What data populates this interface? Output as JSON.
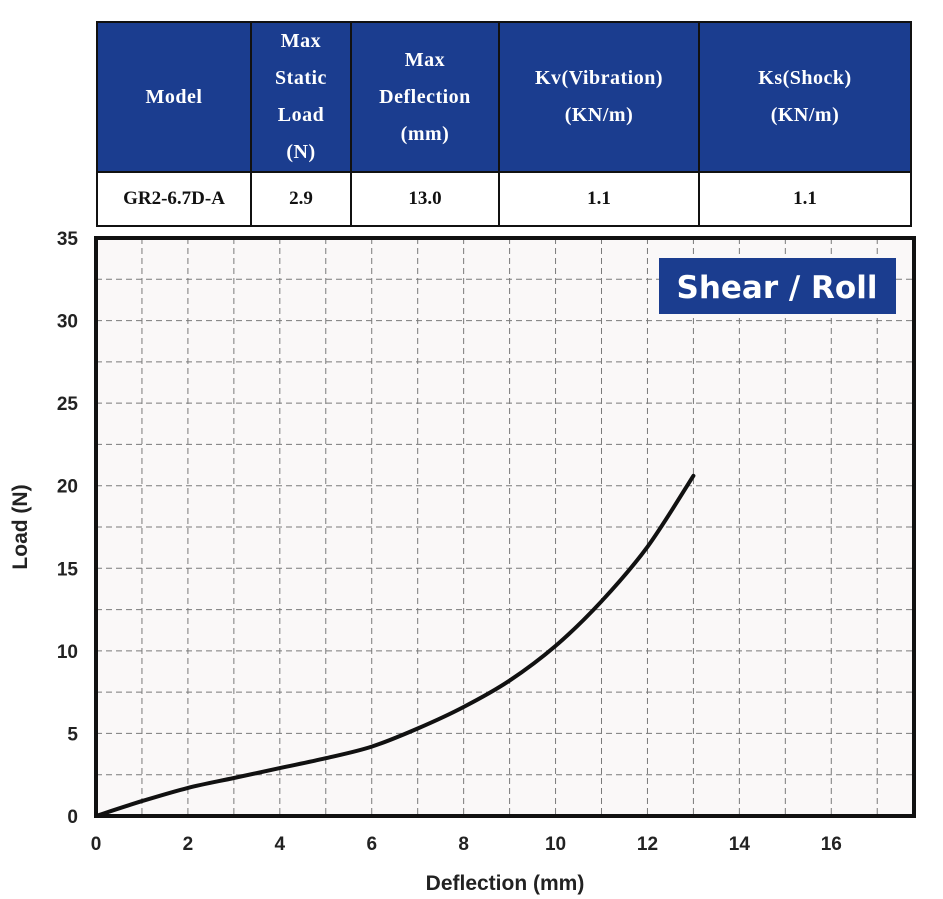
{
  "table": {
    "headers": [
      "Model",
      "Max Static Load (N)",
      "Max Deflection (mm)",
      "Kv(Vibration) (KN/m)",
      "Ks(Shock) (KN/m)"
    ],
    "header_lines": [
      [
        "Model"
      ],
      [
        "Max",
        "Static",
        "Load",
        "(N)"
      ],
      [
        "Max",
        "Deflection",
        "(mm)"
      ],
      [
        "Kv(Vibration)",
        "(KN/m)"
      ],
      [
        "Ks(Shock)",
        "(KN/m)"
      ]
    ],
    "rows": [
      [
        "GR2-6.7D-A",
        "2.9",
        "13.0",
        "1.1",
        "1.1"
      ]
    ]
  },
  "chart_data": {
    "type": "line",
    "badge": "Shear / Roll",
    "xlabel": "Deflection (mm)",
    "ylabel": "Load (N)",
    "xlim": [
      0,
      17.8
    ],
    "ylim": [
      0,
      35
    ],
    "xticks": [
      0,
      2,
      4,
      6,
      8,
      10,
      12,
      14,
      16
    ],
    "yticks": [
      0,
      5,
      10,
      15,
      20,
      25,
      30,
      35
    ],
    "grid": true,
    "colors": {
      "header_bg": "#1b3d8f",
      "badge_bg": "#1b3d8f",
      "line": "#111111",
      "grid": "#7a7a7a"
    },
    "series": [
      {
        "x": [
          0,
          1,
          2,
          3,
          4,
          5,
          6,
          7,
          8,
          9,
          10,
          11,
          12,
          13
        ],
        "y": [
          0,
          0.9,
          1.7,
          2.3,
          2.9,
          3.5,
          4.2,
          5.3,
          6.6,
          8.2,
          10.3,
          13.0,
          16.3,
          20.6
        ]
      }
    ]
  }
}
